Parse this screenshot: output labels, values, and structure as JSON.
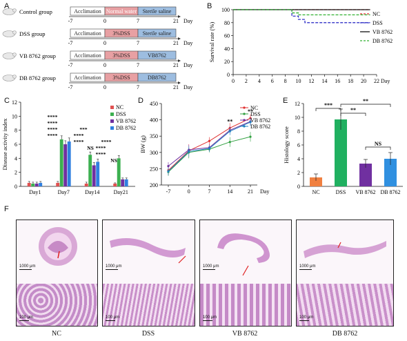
{
  "panels": {
    "A": "A",
    "B": "B",
    "C": "C",
    "D": "D",
    "E": "E",
    "F": "F"
  },
  "timeline": {
    "axis_label": "Day",
    "ticks": [
      "-7",
      "0",
      "7",
      "21"
    ],
    "groups": [
      {
        "name": "Control group",
        "segments": [
          "Acclimation",
          "Normal water",
          "Sterile saline"
        ]
      },
      {
        "name": "DSS group",
        "segments": [
          "Acclimation",
          "3%DSS",
          "Sterile saline"
        ]
      },
      {
        "name": "VB 8762 group",
        "segments": [
          "Acclimation",
          "3%DSS",
          "VB8762"
        ]
      },
      {
        "name": "DB 8762 group",
        "segments": [
          "Acclimation",
          "3%DSS",
          "DB8762"
        ]
      }
    ],
    "colors": {
      "acclimation": "#ffffff",
      "dss": "#e8a0a3",
      "saline": "#9dbde0"
    }
  },
  "chart_data": [
    {
      "panel": "B",
      "type": "line",
      "xlabel": "Day",
      "ylabel": "Survival rate (%)",
      "xlim": [
        0,
        22
      ],
      "ylim": [
        0,
        100
      ],
      "xticks": [
        0,
        2,
        4,
        6,
        8,
        10,
        12,
        14,
        16,
        18,
        20,
        22
      ],
      "yticks": [
        0,
        20,
        40,
        60,
        80,
        100
      ],
      "series": [
        {
          "name": "NC",
          "color": "#e03030",
          "style": "dashed",
          "x": [
            0,
            21
          ],
          "y": [
            100,
            100
          ]
        },
        {
          "name": "DSS",
          "color": "#3030c8",
          "style": "dashed",
          "x": [
            0,
            9,
            9,
            10,
            10,
            11,
            11,
            21
          ],
          "y": [
            100,
            100,
            90,
            90,
            85,
            85,
            80,
            80
          ]
        },
        {
          "name": "VB 8762",
          "color": "#111111",
          "style": "solid",
          "x": [
            0,
            21
          ],
          "y": [
            100,
            100
          ]
        },
        {
          "name": "DB 8762",
          "color": "#30b030",
          "style": "dashed",
          "x": [
            0,
            9,
            9,
            10,
            10,
            21
          ],
          "y": [
            100,
            100,
            95,
            95,
            92,
            92
          ]
        }
      ],
      "legend": "top-right"
    },
    {
      "panel": "C",
      "type": "bar",
      "ylabel": "Disease activity index",
      "categories": [
        "Day1",
        "Day7",
        "Day14",
        "Day21"
      ],
      "ylim": [
        0,
        12
      ],
      "yticks": [
        0,
        2,
        4,
        6,
        8,
        10,
        12
      ],
      "series": [
        {
          "name": "NC",
          "color": "#e05050",
          "values": [
            0.5,
            0.5,
            0.4,
            0.4
          ],
          "errors": [
            0.2,
            0.2,
            0.2,
            0.1
          ]
        },
        {
          "name": "DSS",
          "color": "#3cb050",
          "values": [
            0.4,
            6.7,
            4.5,
            4.0
          ],
          "errors": [
            0.2,
            0.5,
            0.4,
            0.4
          ]
        },
        {
          "name": "VB 8762",
          "color": "#7030a0",
          "values": [
            0.4,
            6.0,
            3.0,
            1.0
          ],
          "errors": [
            0.2,
            0.5,
            0.4,
            0.2
          ]
        },
        {
          "name": "DB 8762",
          "color": "#3080e0",
          "values": [
            0.5,
            6.4,
            3.5,
            1.0
          ],
          "errors": [
            0.2,
            0.5,
            0.4,
            0.2
          ]
        }
      ],
      "annotations": [
        "****",
        "****",
        "****",
        "****",
        "***",
        "****",
        "****",
        "NS",
        "****",
        "****",
        "****",
        "NS"
      ],
      "legend": "top-right"
    },
    {
      "panel": "D",
      "type": "line",
      "xlabel": "Day",
      "ylabel": "BW (g)",
      "x": [
        -7,
        0,
        7,
        14,
        21
      ],
      "ylim": [
        200,
        450
      ],
      "yticks": [
        200,
        250,
        300,
        350,
        400,
        450
      ],
      "xticks": [
        "-7",
        "0",
        "7",
        "14",
        "21"
      ],
      "series": [
        {
          "name": "NC",
          "color": "#e03030",
          "marker": "circle",
          "values": [
            245,
            305,
            335,
            375,
            405
          ],
          "errors": [
            15,
            20,
            12,
            15,
            12
          ]
        },
        {
          "name": "DSS",
          "color": "#30a040",
          "marker": "square",
          "values": [
            240,
            300,
            310,
            332,
            348
          ],
          "errors": [
            12,
            18,
            10,
            15,
            15
          ]
        },
        {
          "name": "VB 8762",
          "color": "#7030a0",
          "marker": "triangle",
          "values": [
            258,
            308,
            315,
            368,
            395
          ],
          "errors": [
            12,
            15,
            10,
            12,
            12
          ]
        },
        {
          "name": "DB 8762",
          "color": "#2080c0",
          "marker": "diamond",
          "values": [
            242,
            303,
            312,
            365,
            393
          ],
          "errors": [
            12,
            15,
            10,
            12,
            12
          ]
        }
      ],
      "annotations": [
        "**",
        "**"
      ],
      "legend": "top-right"
    },
    {
      "panel": "E",
      "type": "bar",
      "ylabel": "Histology score",
      "categories": [
        "NC",
        "DSS",
        "VB 8762",
        "DB 8762"
      ],
      "values": [
        1.3,
        9.7,
        3.3,
        4.0
      ],
      "errors": [
        0.5,
        1.5,
        0.6,
        0.9
      ],
      "colors": [
        "#f08040",
        "#20b060",
        "#7030a0",
        "#3090e0"
      ],
      "ylim": [
        0,
        12
      ],
      "yticks": [
        0,
        2,
        4,
        6,
        8,
        10,
        12
      ],
      "annotations": [
        "***",
        "**",
        "**",
        "NS"
      ]
    }
  ],
  "histology": {
    "scale_top": "1000 μm",
    "scale_bottom": "100 μm",
    "labels": [
      "NC",
      "DSS",
      "VB 8762",
      "DB 8762"
    ]
  }
}
